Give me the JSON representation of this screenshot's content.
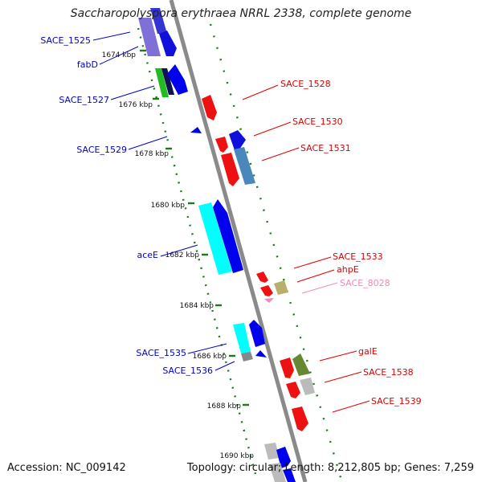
{
  "title": "Saccharopolyspora erythraea NRRL 2338, complete genome",
  "footer": {
    "accession": "Accession: NC_009142",
    "summary": "Topology: circular; Length: 8,212,805 bp; Genes: 7,259"
  },
  "colors": {
    "backbone": "#7d7d7d",
    "tick": "#1b7a1b",
    "label_blue": "#0000cc",
    "label_red": "#dd0000",
    "label_pink": "#ee88bb"
  },
  "kbp_labels": [
    "1674 kbp",
    "1676 kbp",
    "1678 kbp",
    "1680 kbp",
    "1682 kbp",
    "1684 kbp",
    "1686 kbp",
    "1688 kbp",
    "1690 kbp"
  ],
  "gene_labels_left": [
    "SACE_1525",
    "fabD",
    "SACE_1527",
    "SACE_1529",
    "aceE",
    "SACE_1535",
    "SACE_1536"
  ],
  "gene_labels_right": [
    "SACE_1528",
    "SACE_1530",
    "SACE_1531",
    "SACE_1533",
    "ahpE",
    "SACE_8028",
    "galE",
    "SACE_1538",
    "SACE_1539"
  ]
}
